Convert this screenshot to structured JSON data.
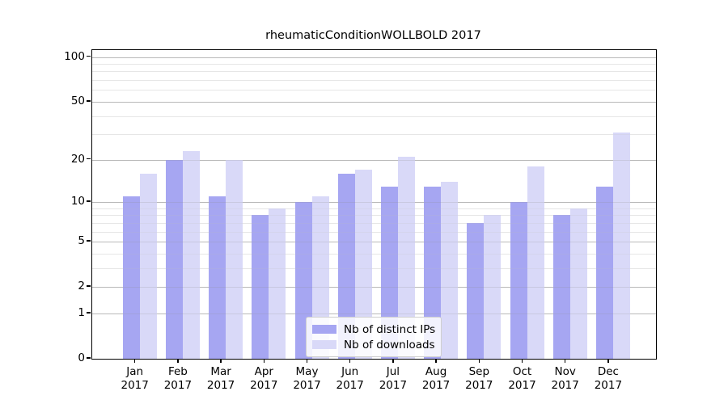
{
  "chart_data": {
    "type": "bar",
    "title": "rheumaticConditionWOLLBOLD 2017",
    "categories": [
      "Jan",
      "Feb",
      "Mar",
      "Apr",
      "May",
      "Jun",
      "Jul",
      "Aug",
      "Sep",
      "Oct",
      "Nov",
      "Dec"
    ],
    "x_tick_second_line": "2017",
    "series": [
      {
        "name": "Nb of distinct IPs",
        "color": "#a6a6f2",
        "values": [
          11,
          20,
          11,
          8,
          10,
          16,
          13,
          13,
          7,
          10,
          8,
          13
        ]
      },
      {
        "name": "Nb of downloads",
        "color": "#d9d9f8",
        "values": [
          16,
          23,
          20,
          9,
          11,
          17,
          21,
          14,
          8,
          18,
          9,
          31
        ]
      }
    ],
    "y_scale": "log10(1+y)",
    "y_ticks": [
      0,
      1,
      2,
      5,
      10,
      20,
      50,
      100
    ],
    "y_minor_ticks": [
      3,
      4,
      6,
      7,
      8,
      9,
      30,
      40,
      60,
      70,
      80,
      90
    ],
    "ylim": [
      0,
      111
    ],
    "grid": true,
    "legend_position": "bottom-center",
    "colors": {
      "spine": "#000000",
      "major_grid": "#c6c6c6",
      "minor_grid": "#efefef",
      "background": "#ffffff"
    }
  }
}
